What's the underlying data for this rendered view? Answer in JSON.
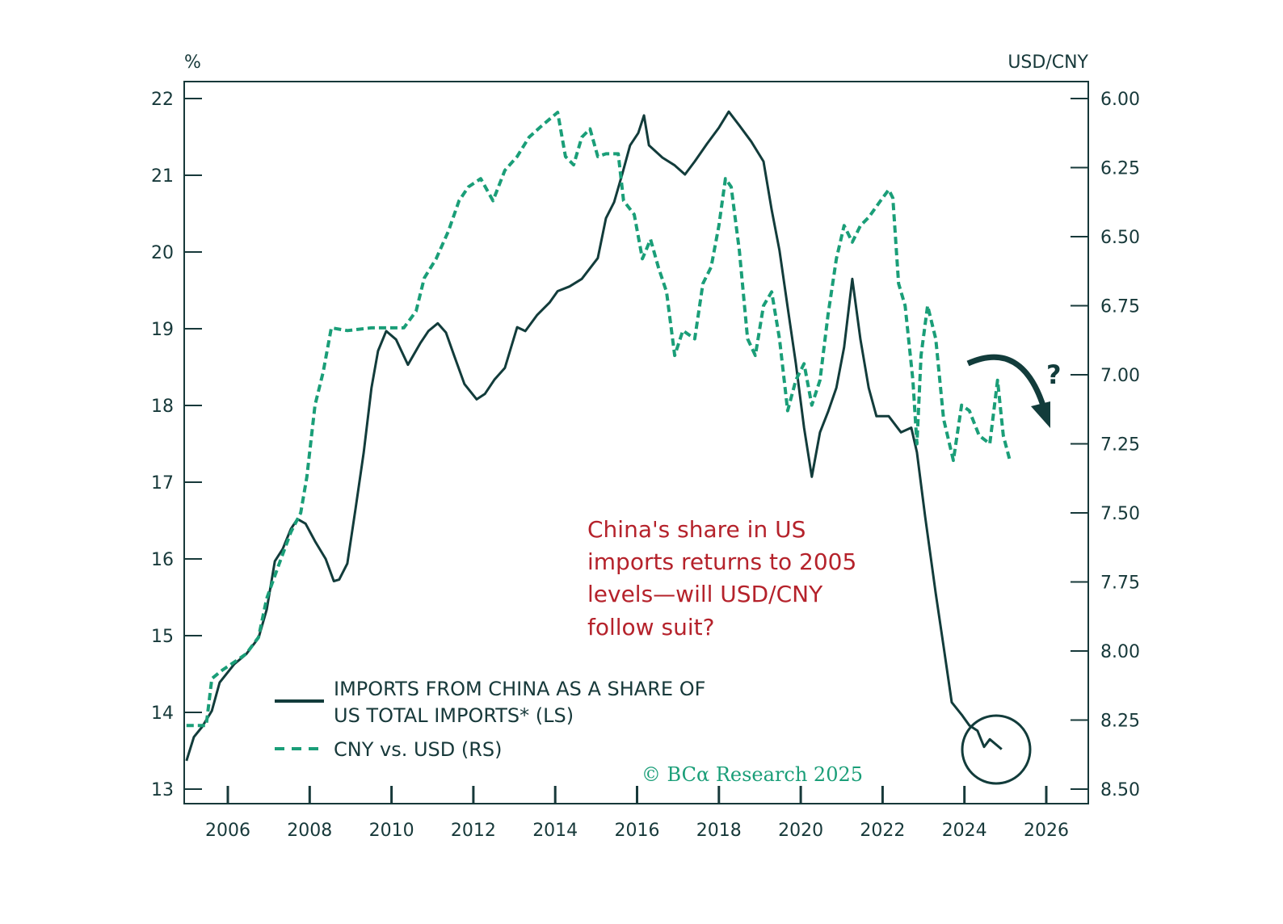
{
  "chart_data": {
    "type": "line",
    "left_axis": {
      "unit": "%",
      "ylim": [
        13,
        22
      ],
      "ticks": [
        "13",
        "14",
        "15",
        "16",
        "17",
        "18",
        "19",
        "20",
        "21",
        "22"
      ]
    },
    "right_axis": {
      "unit": "USD/CNY",
      "ylim": [
        6.0,
        8.5
      ],
      "inverted": true,
      "ticks": [
        "6.00",
        "6.25",
        "6.50",
        "6.75",
        "7.00",
        "7.25",
        "7.50",
        "7.75",
        "8.00",
        "8.25",
        "8.50"
      ]
    },
    "x_ticks": [
      "2006",
      "2008",
      "2010",
      "2012",
      "2014",
      "2016",
      "2018",
      "2020",
      "2022",
      "2024",
      "2026"
    ],
    "xlim": [
      2005,
      2027
    ],
    "series": [
      {
        "name_lines": [
          "IMPORTS FROM CHINA AS A SHARE OF",
          "US TOTAL IMPORTS* (LS)"
        ],
        "axis": "left",
        "style": "solid",
        "color": "#123c3b",
        "x": [
          2004.99,
          2005.17,
          2005.37,
          2005.61,
          2005.8,
          2006.16,
          2006.45,
          2006.75,
          2006.95,
          2007.15,
          2007.34,
          2007.54,
          2007.7,
          2007.9,
          2008.13,
          2008.39,
          2008.59,
          2008.72,
          2008.92,
          2009.12,
          2009.32,
          2009.51,
          2009.67,
          2009.87,
          2010.11,
          2010.4,
          2010.7,
          2010.9,
          2011.13,
          2011.33,
          2011.53,
          2011.78,
          2012.08,
          2012.28,
          2012.52,
          2012.77,
          2013.07,
          2013.27,
          2013.56,
          2013.86,
          2014.06,
          2014.35,
          2014.65,
          2015.04,
          2015.24,
          2015.44,
          2015.64,
          2015.83,
          2016.03,
          2016.17,
          2016.29,
          2016.62,
          2016.92,
          2017.17,
          2017.41,
          2017.71,
          2018.0,
          2018.24,
          2018.5,
          2018.79,
          2019.09,
          2019.29,
          2019.48,
          2019.68,
          2019.88,
          2020.08,
          2020.27,
          2020.47,
          2020.67,
          2020.87,
          2021.06,
          2021.26,
          2021.46,
          2021.66,
          2021.85,
          2022.15,
          2022.45,
          2022.7,
          2022.84,
          2023.04,
          2023.3,
          2023.49,
          2023.69,
          2023.93,
          2024.12,
          2024.32,
          2024.48,
          2024.62,
          2024.91
        ],
        "y": [
          13.37,
          13.68,
          13.81,
          14.02,
          14.39,
          14.63,
          14.76,
          14.97,
          15.34,
          15.97,
          16.13,
          16.39,
          16.52,
          16.46,
          16.23,
          16.0,
          15.71,
          15.73,
          15.94,
          16.65,
          17.39,
          18.23,
          18.71,
          18.97,
          18.86,
          18.53,
          18.81,
          18.97,
          19.07,
          18.95,
          18.65,
          18.28,
          18.08,
          18.15,
          18.34,
          18.49,
          19.02,
          18.97,
          19.18,
          19.34,
          19.49,
          19.55,
          19.65,
          19.92,
          20.44,
          20.65,
          21.02,
          21.39,
          21.55,
          21.78,
          21.39,
          21.23,
          21.13,
          21.01,
          21.18,
          21.41,
          21.62,
          21.83,
          21.65,
          21.44,
          21.18,
          20.55,
          20.02,
          19.28,
          18.55,
          17.71,
          17.07,
          17.65,
          17.92,
          18.23,
          18.76,
          19.65,
          18.86,
          18.23,
          17.86,
          17.86,
          17.65,
          17.71,
          17.39,
          16.55,
          15.55,
          14.86,
          14.13,
          13.97,
          13.83,
          13.76,
          13.55,
          13.65,
          13.52
        ]
      },
      {
        "name_lines": [
          "CNY vs. USD (RS)"
        ],
        "axis": "right",
        "style": "dashed",
        "color": "#1a9e78",
        "x": [
          2004.99,
          2005.47,
          2005.61,
          2005.86,
          2006.16,
          2006.45,
          2006.75,
          2006.95,
          2007.24,
          2007.54,
          2007.78,
          2007.93,
          2008.13,
          2008.33,
          2008.53,
          2008.92,
          2009.51,
          2010.3,
          2010.6,
          2010.8,
          2011.09,
          2011.39,
          2011.65,
          2011.88,
          2012.18,
          2012.48,
          2012.77,
          2013.07,
          2013.36,
          2013.66,
          2014.06,
          2014.25,
          2014.45,
          2014.65,
          2014.85,
          2015.04,
          2015.24,
          2015.54,
          2015.67,
          2015.93,
          2016.13,
          2016.33,
          2016.52,
          2016.72,
          2016.92,
          2017.12,
          2017.41,
          2017.61,
          2017.81,
          2018.0,
          2018.16,
          2018.3,
          2018.5,
          2018.7,
          2018.89,
          2019.09,
          2019.29,
          2019.48,
          2019.68,
          2019.88,
          2020.08,
          2020.27,
          2020.47,
          2020.67,
          2020.87,
          2021.06,
          2021.26,
          2021.46,
          2021.66,
          2021.95,
          2022.15,
          2022.25,
          2022.39,
          2022.55,
          2022.74,
          2022.84,
          2022.94,
          2023.1,
          2023.3,
          2023.49,
          2023.73,
          2023.93,
          2024.12,
          2024.36,
          2024.62,
          2024.81,
          2024.95,
          2025.11
        ],
        "y": [
          8.27,
          8.27,
          8.1,
          8.07,
          8.04,
          8.01,
          7.95,
          7.81,
          7.69,
          7.57,
          7.5,
          7.37,
          7.11,
          6.99,
          6.83,
          6.84,
          6.83,
          6.83,
          6.77,
          6.65,
          6.58,
          6.48,
          6.37,
          6.32,
          6.29,
          6.37,
          6.26,
          6.21,
          6.14,
          6.1,
          6.05,
          6.21,
          6.24,
          6.14,
          6.11,
          6.21,
          6.2,
          6.2,
          6.37,
          6.42,
          6.58,
          6.51,
          6.61,
          6.7,
          6.93,
          6.84,
          6.87,
          6.67,
          6.61,
          6.46,
          6.29,
          6.32,
          6.55,
          6.87,
          6.93,
          6.75,
          6.7,
          6.87,
          7.13,
          7.02,
          6.96,
          7.11,
          7.02,
          6.78,
          6.58,
          6.46,
          6.52,
          6.46,
          6.43,
          6.37,
          6.33,
          6.36,
          6.67,
          6.75,
          7.02,
          7.25,
          6.93,
          6.75,
          6.87,
          7.16,
          7.31,
          7.11,
          7.13,
          7.22,
          7.25,
          7.02,
          7.22,
          7.31
        ]
      }
    ],
    "annotation": [
      "China's share in US",
      "imports returns to 2005",
      "levels—will USD/CNY",
      "follow suit?"
    ],
    "question_mark": "?",
    "copyright": "© BCα Research 2025",
    "colors": {
      "axis": "#17393a",
      "annotation": "#b5222b",
      "dashed": "#1a9e78",
      "solid": "#123c3b"
    }
  }
}
